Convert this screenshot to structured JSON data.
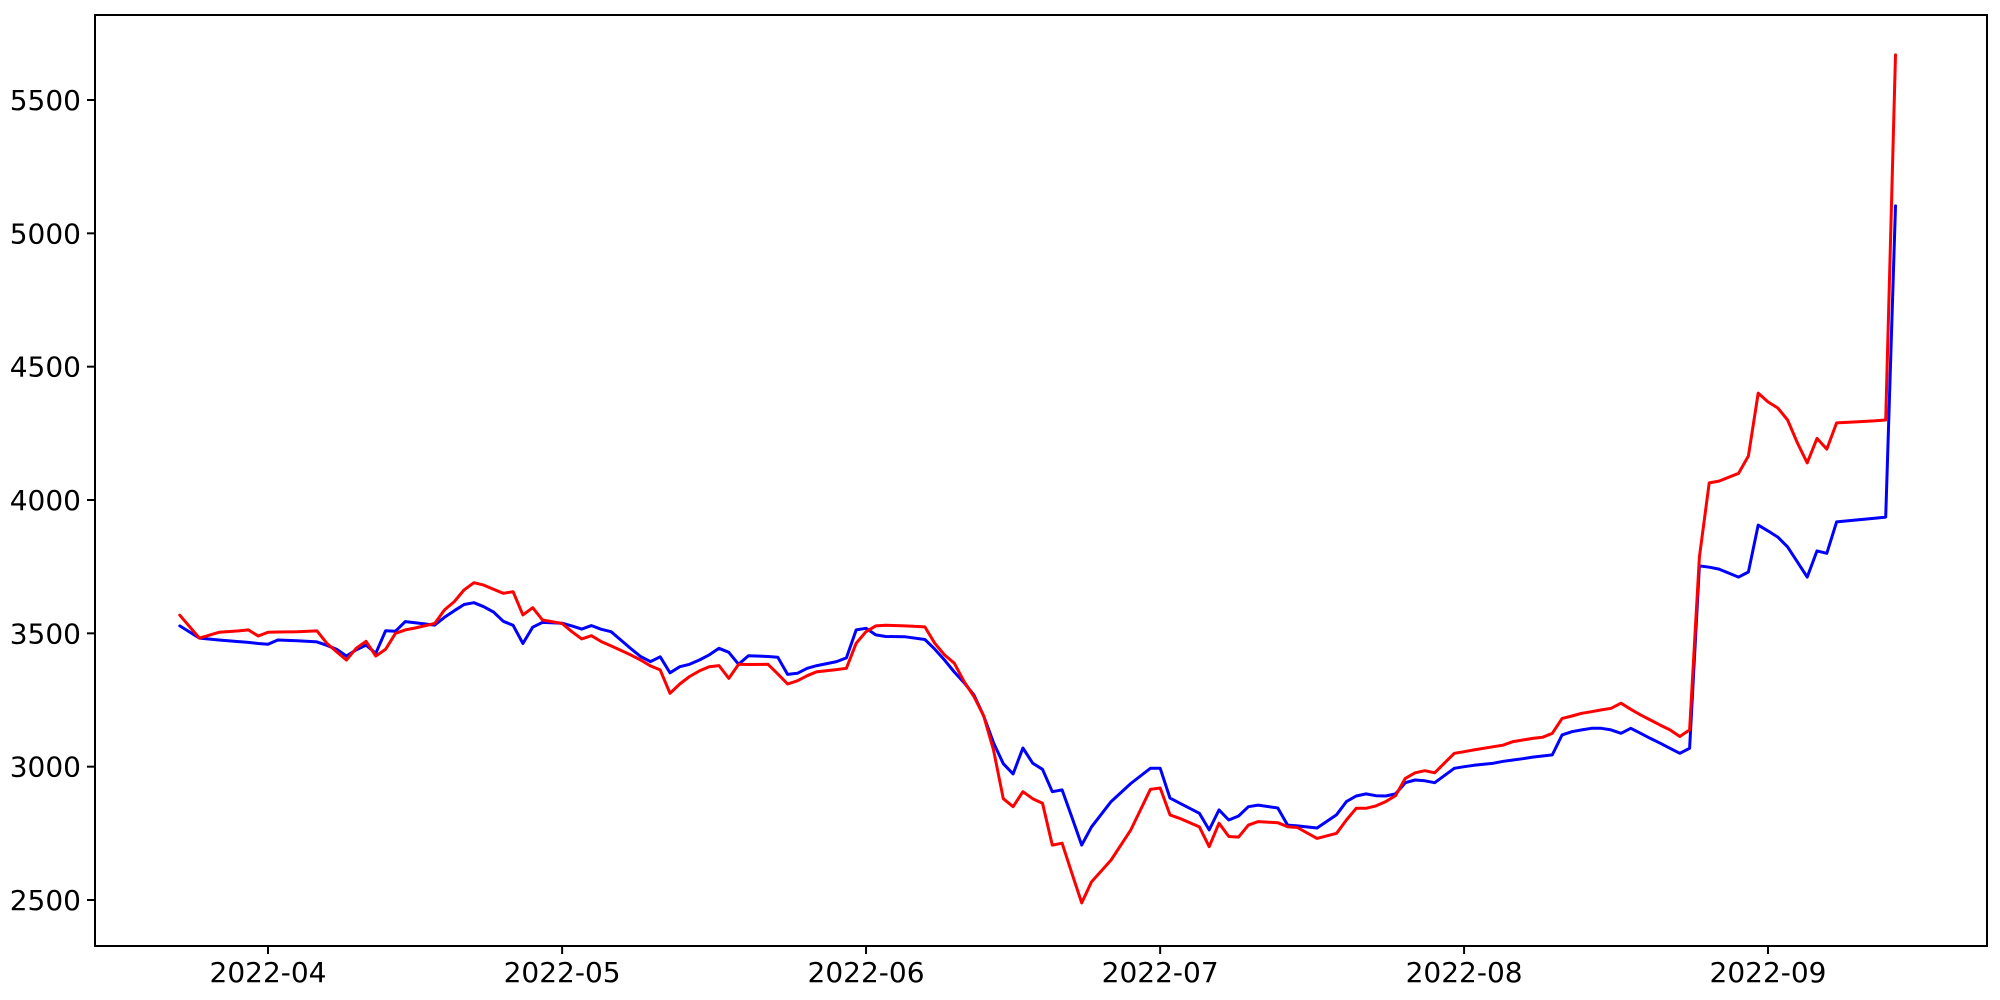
{
  "figure": {
    "background": "#ffffff",
    "axis_color": "#000000"
  },
  "chart_data": {
    "type": "line",
    "title": "",
    "xlabel": "",
    "ylabel": "",
    "grid": false,
    "legend": "none",
    "x_ticks": [
      {
        "label": "2022-04",
        "date": "2022-04-01"
      },
      {
        "label": "2022-05",
        "date": "2022-05-01"
      },
      {
        "label": "2022-06",
        "date": "2022-06-01"
      },
      {
        "label": "2022-07",
        "date": "2022-07-01"
      },
      {
        "label": "2022-08",
        "date": "2022-08-01"
      },
      {
        "label": "2022-09",
        "date": "2022-09-01"
      }
    ],
    "y_ticks": [
      2500,
      3000,
      3500,
      4000,
      4500,
      5000,
      5500
    ],
    "ylim": [
      2327,
      5819
    ],
    "xlim_dates": [
      "2022-03-14",
      "2022-09-23"
    ],
    "x": [
      "2022-03-23",
      "2022-03-25",
      "2022-03-27",
      "2022-03-29",
      "2022-03-30",
      "2022-03-31",
      "2022-04-01",
      "2022-04-02",
      "2022-04-04",
      "2022-04-06",
      "2022-04-07",
      "2022-04-08",
      "2022-04-09",
      "2022-04-10",
      "2022-04-11",
      "2022-04-12",
      "2022-04-13",
      "2022-04-14",
      "2022-04-15",
      "2022-04-16",
      "2022-04-18",
      "2022-04-19",
      "2022-04-20",
      "2022-04-21",
      "2022-04-22",
      "2022-04-23",
      "2022-04-24",
      "2022-04-25",
      "2022-04-26",
      "2022-04-27",
      "2022-04-28",
      "2022-04-29",
      "2022-05-01",
      "2022-05-02",
      "2022-05-03",
      "2022-05-04",
      "2022-05-05",
      "2022-05-06",
      "2022-05-08",
      "2022-05-09",
      "2022-05-10",
      "2022-05-11",
      "2022-05-12",
      "2022-05-13",
      "2022-05-14",
      "2022-05-15",
      "2022-05-16",
      "2022-05-17",
      "2022-05-18",
      "2022-05-19",
      "2022-05-20",
      "2022-05-22",
      "2022-05-23",
      "2022-05-24",
      "2022-05-25",
      "2022-05-26",
      "2022-05-27",
      "2022-05-29",
      "2022-05-30",
      "2022-05-31",
      "2022-06-01",
      "2022-06-02",
      "2022-06-03",
      "2022-06-05",
      "2022-06-07",
      "2022-06-08",
      "2022-06-09",
      "2022-06-10",
      "2022-06-11",
      "2022-06-12",
      "2022-06-13",
      "2022-06-14",
      "2022-06-15",
      "2022-06-16",
      "2022-06-17",
      "2022-06-18",
      "2022-06-19",
      "2022-06-20",
      "2022-06-21",
      "2022-06-22",
      "2022-06-23",
      "2022-06-24",
      "2022-06-26",
      "2022-06-28",
      "2022-06-30",
      "2022-07-01",
      "2022-07-02",
      "2022-07-03",
      "2022-07-05",
      "2022-07-06",
      "2022-07-07",
      "2022-07-08",
      "2022-07-09",
      "2022-07-10",
      "2022-07-11",
      "2022-07-13",
      "2022-07-14",
      "2022-07-15",
      "2022-07-17",
      "2022-07-19",
      "2022-07-20",
      "2022-07-21",
      "2022-07-22",
      "2022-07-23",
      "2022-07-24",
      "2022-07-25",
      "2022-07-26",
      "2022-07-27",
      "2022-07-28",
      "2022-07-29",
      "2022-07-31",
      "2022-08-01",
      "2022-08-02",
      "2022-08-04",
      "2022-08-05",
      "2022-08-06",
      "2022-08-07",
      "2022-08-08",
      "2022-08-09",
      "2022-08-10",
      "2022-08-11",
      "2022-08-12",
      "2022-08-13",
      "2022-08-14",
      "2022-08-15",
      "2022-08-16",
      "2022-08-17",
      "2022-08-18",
      "2022-08-19",
      "2022-08-20",
      "2022-08-21",
      "2022-08-22",
      "2022-08-23",
      "2022-08-24",
      "2022-08-25",
      "2022-08-26",
      "2022-08-27",
      "2022-08-29",
      "2022-08-30",
      "2022-08-31",
      "2022-09-01",
      "2022-09-02",
      "2022-09-03",
      "2022-09-04",
      "2022-09-05",
      "2022-09-06",
      "2022-09-07",
      "2022-09-08",
      "2022-09-10",
      "2022-09-12",
      "2022-09-13",
      "2022-09-14"
    ],
    "series": [
      {
        "name": "blue",
        "color": "#0000ff",
        "values": [
          3528,
          3482,
          3475,
          3469,
          3466,
          3462,
          3459,
          3475,
          3472,
          3468,
          3455,
          3440,
          3415,
          3438,
          3456,
          3425,
          3510,
          3508,
          3544,
          3540,
          3531,
          3560,
          3585,
          3608,
          3615,
          3600,
          3580,
          3545,
          3530,
          3462,
          3523,
          3541,
          3538,
          3528,
          3516,
          3529,
          3515,
          3506,
          3443,
          3413,
          3394,
          3412,
          3352,
          3375,
          3384,
          3400,
          3419,
          3444,
          3429,
          3384,
          3416,
          3413,
          3410,
          3346,
          3350,
          3369,
          3379,
          3394,
          3408,
          3513,
          3519,
          3494,
          3488,
          3487,
          3477,
          3441,
          3400,
          3355,
          3315,
          3269,
          3190,
          3090,
          3011,
          2973,
          3070,
          3013,
          2990,
          2906,
          2913,
          2810,
          2706,
          2774,
          2869,
          2937,
          2994,
          2994,
          2882,
          2863,
          2825,
          2763,
          2838,
          2800,
          2815,
          2850,
          2856,
          2845,
          2781,
          2778,
          2770,
          2820,
          2869,
          2890,
          2898,
          2891,
          2890,
          2898,
          2940,
          2950,
          2947,
          2940,
          2994,
          3000,
          3005,
          3013,
          3020,
          3025,
          3030,
          3036,
          3040,
          3044,
          3119,
          3131,
          3138,
          3144,
          3144,
          3138,
          3125,
          3144,
          3125,
          3106,
          3088,
          3069,
          3050,
          3069,
          3753,
          3748,
          3741,
          3711,
          3730,
          3906,
          3884,
          3861,
          3824,
          3768,
          3711,
          3809,
          3800,
          3918,
          3925,
          3932,
          3936,
          5103
        ]
      },
      {
        "name": "red",
        "color": "#ff0000",
        "values": [
          3568,
          3482,
          3504,
          3509,
          3513,
          3490,
          3504,
          3505,
          3506,
          3509,
          3463,
          3431,
          3400,
          3444,
          3470,
          3415,
          3440,
          3500,
          3513,
          3520,
          3537,
          3588,
          3619,
          3663,
          3690,
          3681,
          3665,
          3650,
          3656,
          3569,
          3596,
          3550,
          3537,
          3506,
          3479,
          3491,
          3469,
          3453,
          3419,
          3400,
          3378,
          3363,
          3275,
          3310,
          3338,
          3359,
          3375,
          3379,
          3331,
          3384,
          3383,
          3384,
          3348,
          3310,
          3322,
          3341,
          3356,
          3364,
          3369,
          3463,
          3506,
          3528,
          3530,
          3528,
          3524,
          3463,
          3419,
          3388,
          3319,
          3263,
          3190,
          3063,
          2880,
          2850,
          2906,
          2880,
          2863,
          2706,
          2713,
          2600,
          2489,
          2568,
          2650,
          2763,
          2915,
          2920,
          2819,
          2806,
          2774,
          2700,
          2788,
          2738,
          2736,
          2781,
          2794,
          2790,
          2775,
          2772,
          2731,
          2750,
          2800,
          2844,
          2844,
          2853,
          2869,
          2891,
          2956,
          2977,
          2985,
          2977,
          3050,
          3056,
          3063,
          3075,
          3081,
          3094,
          3100,
          3106,
          3110,
          3125,
          3181,
          3190,
          3200,
          3206,
          3213,
          3219,
          3238,
          3215,
          3194,
          3175,
          3156,
          3138,
          3113,
          3138,
          3786,
          4064,
          4071,
          4100,
          4165,
          4401,
          4368,
          4345,
          4300,
          4214,
          4139,
          4231,
          4191,
          4289,
          4293,
          4297,
          4300,
          5669
        ]
      }
    ]
  }
}
